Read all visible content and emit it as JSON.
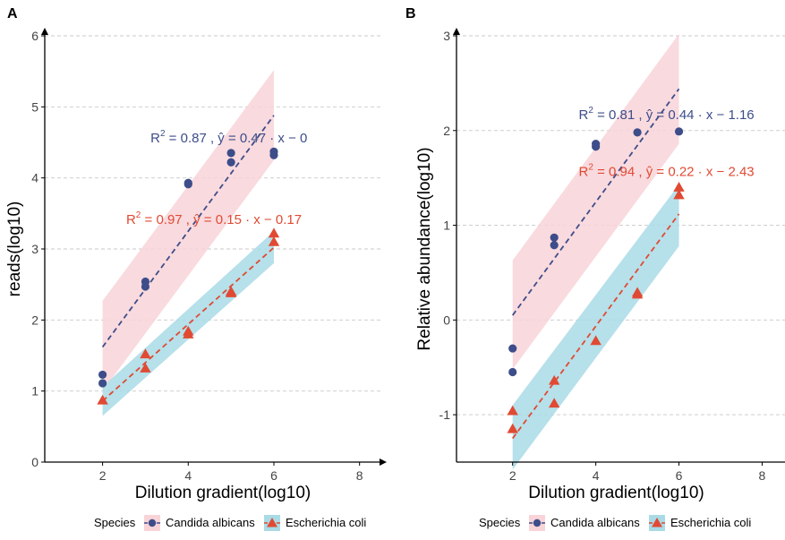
{
  "colors": {
    "candida": "#3d4d8a",
    "candida_band": "#f8d4d8",
    "ecoli": "#e04a33",
    "ecoli_band": "#a9dbe6",
    "grid": "#c8c8c8"
  },
  "chart_data": [
    {
      "panel": "A",
      "type": "scatter",
      "xlabel": "Dilution gradient(log10)",
      "ylabel": "reads(log10)",
      "xlim": [
        0.65,
        8.55
      ],
      "ylim": [
        0,
        6
      ],
      "xticks": [
        2,
        4,
        6,
        8
      ],
      "yticks": [
        0,
        1,
        2,
        3,
        4,
        5,
        6
      ],
      "grid": "horizontal dashed",
      "series": [
        {
          "name": "Candida albicans",
          "marker": "circle",
          "points": [
            [
              2,
              1.23
            ],
            [
              2,
              1.11
            ],
            [
              3,
              2.54
            ],
            [
              3,
              2.47
            ],
            [
              4,
              3.93
            ],
            [
              4,
              3.91
            ],
            [
              5,
              4.35
            ],
            [
              5,
              4.22
            ],
            [
              6,
              4.37
            ],
            [
              6,
              4.32
            ]
          ],
          "fit_line": [
            [
              2,
              1.62
            ],
            [
              6,
              4.88
            ]
          ],
          "band_upper": [
            [
              2,
              2.27
            ],
            [
              6,
              5.52
            ]
          ],
          "band_lower": [
            [
              2,
              1.0
            ],
            [
              6,
              4.25
            ]
          ],
          "annotation": {
            "prefix": "R",
            "sup": "2",
            "text": " = 0.87 , ŷ  =  0.47 · x − 0",
            "at": [
              4.95,
              4.5
            ]
          }
        },
        {
          "name": "Escherichia coli",
          "marker": "triangle",
          "points": [
            [
              2,
              0.87
            ],
            [
              3,
              1.52
            ],
            [
              3,
              1.32
            ],
            [
              4,
              1.84
            ],
            [
              4,
              1.8
            ],
            [
              5,
              2.4
            ],
            [
              5,
              2.38
            ],
            [
              6,
              3.22
            ],
            [
              6,
              3.1
            ]
          ],
          "fit_line": [
            [
              2,
              0.86
            ],
            [
              6,
              3.02
            ]
          ],
          "band_upper": [
            [
              2,
              1.06
            ],
            [
              6,
              3.25
            ]
          ],
          "band_lower": [
            [
              2,
              0.65
            ],
            [
              6,
              2.8
            ]
          ],
          "annotation": {
            "prefix": "R",
            "sup": "2",
            "text": " = 0.97 , ŷ  =  0.15 · x − 0.17",
            "at": [
              4.6,
              3.35
            ]
          }
        }
      ]
    },
    {
      "panel": "B",
      "type": "scatter",
      "xlabel": "Dilution gradient(log10)",
      "ylabel": "Relative abundance(log10)",
      "xlim": [
        0.65,
        8.55
      ],
      "ylim": [
        -1.5,
        3
      ],
      "xticks": [
        2,
        4,
        6,
        8
      ],
      "yticks": [
        -1,
        0,
        1,
        2,
        3
      ],
      "grid": "horizontal dashed",
      "series": [
        {
          "name": "Candida albicans",
          "marker": "circle",
          "points": [
            [
              2,
              -0.3
            ],
            [
              2,
              -0.55
            ],
            [
              3,
              0.87
            ],
            [
              3,
              0.79
            ],
            [
              4,
              1.86
            ],
            [
              4,
              1.83
            ],
            [
              5,
              1.98
            ],
            [
              6,
              1.99
            ]
          ],
          "fit_line": [
            [
              2,
              0.05
            ],
            [
              6,
              2.44
            ]
          ],
          "band_upper": [
            [
              2,
              0.63
            ],
            [
              6,
              3.02
            ]
          ],
          "band_lower": [
            [
              2,
              -0.52
            ],
            [
              6,
              1.86
            ]
          ],
          "annotation": {
            "prefix": "R",
            "sup": "2",
            "text": " = 0.81 , ŷ  =  0.44 · x − 1.16",
            "at": [
              5.7,
              2.12
            ]
          }
        },
        {
          "name": "Escherichia coli",
          "marker": "triangle",
          "points": [
            [
              2,
              -0.96
            ],
            [
              2,
              -1.15
            ],
            [
              3,
              -0.64
            ],
            [
              3,
              -0.88
            ],
            [
              4,
              -0.22
            ],
            [
              5,
              0.29
            ],
            [
              5,
              0.27
            ],
            [
              6,
              1.4
            ],
            [
              6,
              1.32
            ]
          ],
          "fit_line": [
            [
              2,
              -1.25
            ],
            [
              6,
              1.12
            ]
          ],
          "band_upper": [
            [
              2,
              -0.9
            ],
            [
              6,
              1.43
            ]
          ],
          "band_lower": [
            [
              2,
              -1.58
            ],
            [
              6,
              0.78
            ]
          ],
          "annotation": {
            "prefix": "R",
            "sup": "2",
            "text": " = 0.94 , ŷ  =  0.22 · x − 2.43",
            "at": [
              5.7,
              1.52
            ]
          }
        }
      ]
    }
  ],
  "legend": {
    "title": "Species",
    "placement": "bottom",
    "items": [
      "Candida albicans",
      "Escherichia coli"
    ]
  }
}
